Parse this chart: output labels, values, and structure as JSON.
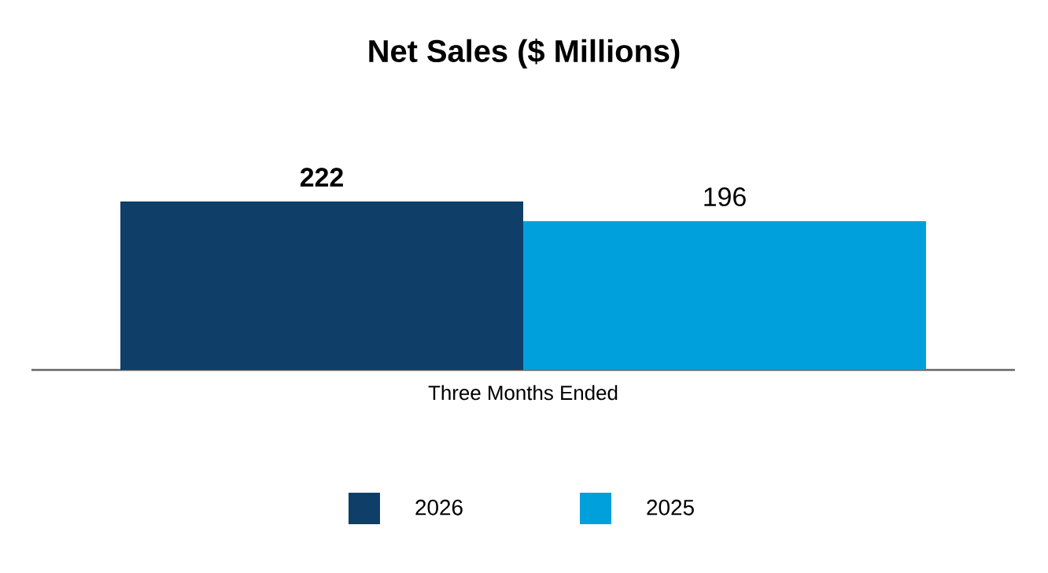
{
  "chart_data": {
    "type": "bar",
    "title": "Net Sales ($ Millions)",
    "xlabel": "Three Months Ended",
    "categories": [
      null
    ],
    "series": [
      {
        "name": "2026",
        "color": "#0f3f68",
        "values": [
          222
        ],
        "value_labels": [
          "222"
        ]
      },
      {
        "name": "2025",
        "color": "#00a0dc",
        "values": [
          196
        ],
        "value_labels": [
          "196"
        ]
      }
    ],
    "legend": "bottom"
  }
}
